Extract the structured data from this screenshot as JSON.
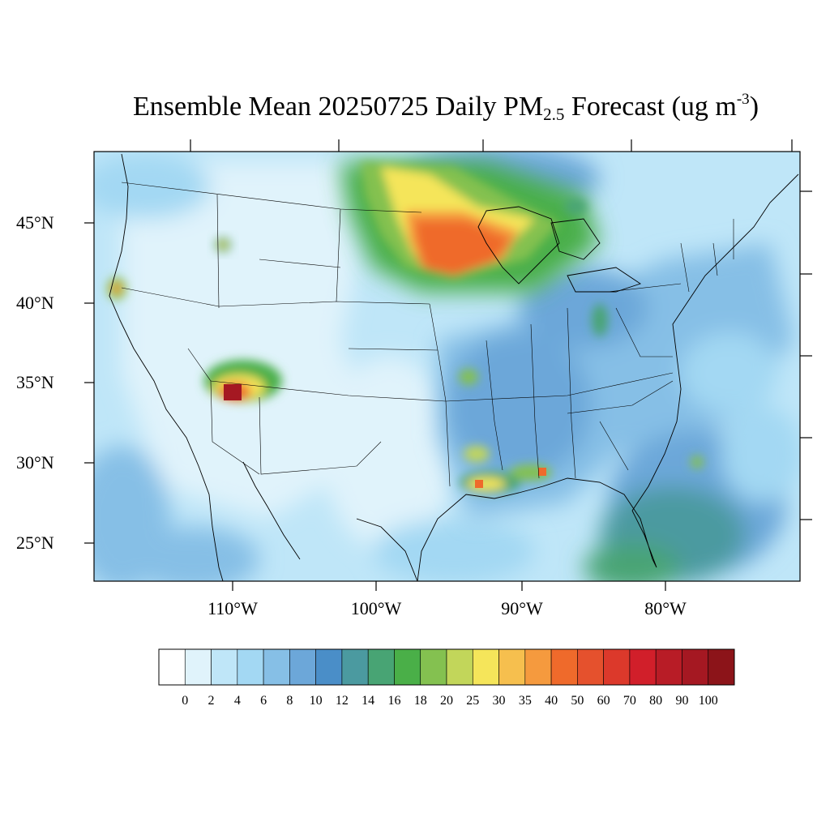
{
  "title": {
    "prefix": "Ensemble Mean 20250725 Daily PM",
    "subscript": "2.5",
    "middle": " Forecast (ug m",
    "superscript": "-3",
    "suffix": ")"
  },
  "lat_labels": [
    "45°N",
    "40°N",
    "35°N",
    "30°N",
    "25°N"
  ],
  "lon_labels": [
    "110°W",
    "100°W",
    "90°W",
    "80°W"
  ],
  "colorbar": {
    "levels": [
      "0",
      "2",
      "4",
      "6",
      "8",
      "10",
      "12",
      "14",
      "16",
      "18",
      "20",
      "25",
      "30",
      "35",
      "40",
      "50",
      "60",
      "70",
      "80",
      "90",
      "100"
    ],
    "colors": [
      "#ffffff",
      "#e0f3fb",
      "#bfe6f8",
      "#a3d8f3",
      "#86bfe6",
      "#6ca7d9",
      "#4a8ec8",
      "#4b9aa0",
      "#48a474",
      "#4aaf48",
      "#84c150",
      "#c2d65a",
      "#f5e55a",
      "#f6bf4e",
      "#f59a3e",
      "#ef6a2b",
      "#e5512d",
      "#dc392b",
      "#d11f2a",
      "#b81c26",
      "#a51822",
      "#8c1419"
    ]
  },
  "map": {
    "projection": "Lambert conformal, CONUS",
    "hotspots": [
      {
        "name": "Western Lake Superior / Minnesota smoke plume",
        "value": 40
      },
      {
        "name": "Four Corners fire",
        "value": 100
      },
      {
        "name": "Northern California fire",
        "value": 30
      },
      {
        "name": "Idaho fire",
        "value": 25
      },
      {
        "name": "Louisiana coast",
        "value": 40
      },
      {
        "name": "Mississippi coast",
        "value": 40
      }
    ]
  }
}
